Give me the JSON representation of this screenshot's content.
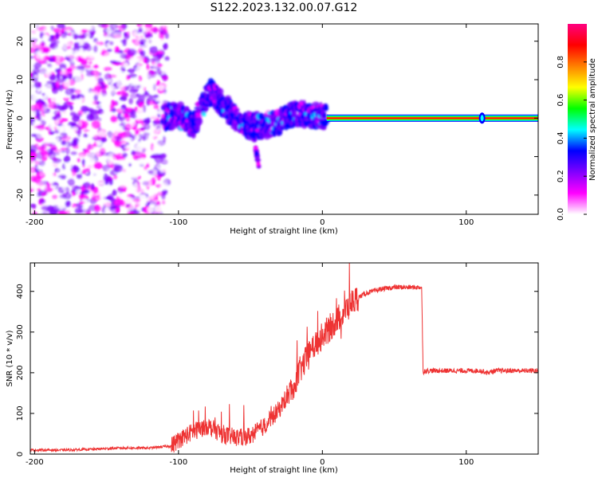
{
  "title": "S122.2023.132.00.07.G12",
  "chart_data": [
    {
      "type": "heatmap",
      "xlabel": "Height of straight line (km)",
      "ylabel": "Frequency (Hz)",
      "xlim": [
        -203,
        150
      ],
      "ylim": [
        -25,
        24.5
      ],
      "xticks": [
        -200,
        -100,
        0,
        100
      ],
      "yticks": [
        -20,
        -10,
        0,
        10,
        20
      ],
      "colorbar": {
        "label": "Normalized spectral amplitude",
        "range": [
          0,
          1
        ],
        "ticks": [
          0.0,
          0.2,
          0.4,
          0.6,
          0.8
        ],
        "colormap": [
          "#ffffff",
          "#ff00ff",
          "#8000ff",
          "#0000ff",
          "#00ffff",
          "#00ff00",
          "#ffff00",
          "#ff8000",
          "#ff0000",
          "#ff0080"
        ]
      },
      "ridge": [
        {
          "x": -110,
          "y": 0
        },
        {
          "x": -100,
          "y": 1
        },
        {
          "x": -90,
          "y": -2
        },
        {
          "x": -78,
          "y": 7
        },
        {
          "x": -70,
          "y": 4
        },
        {
          "x": -60,
          "y": 0
        },
        {
          "x": -50,
          "y": -2
        },
        {
          "x": -40,
          "y": -2
        },
        {
          "x": -30,
          "y": -1
        },
        {
          "x": -22,
          "y": 1
        },
        {
          "x": -12,
          "y": 1
        },
        {
          "x": 0,
          "y": 0.5
        },
        {
          "x": 5,
          "y": 0
        },
        {
          "x": 150,
          "y": 0
        }
      ],
      "tail": [
        {
          "x": -48,
          "y": -4
        },
        {
          "x": -44,
          "y": -13
        }
      ],
      "steady_line": {
        "x_start": 3,
        "x_end": 150,
        "y": 0
      },
      "marker": {
        "x": 111,
        "y": 0
      }
    },
    {
      "type": "line",
      "xlabel": "Height of straight line (km)",
      "ylabel": "SNR (10 * v/v)",
      "xlim": [
        -203,
        150
      ],
      "ylim": [
        0,
        470
      ],
      "xticks": [
        -200,
        -100,
        0,
        100
      ],
      "yticks": [
        0,
        100,
        200,
        300,
        400
      ],
      "color": "#ee3333",
      "x": [
        -203,
        -180,
        -160,
        -140,
        -120,
        -105,
        -100,
        -90,
        -80,
        -70,
        -60,
        -50,
        -40,
        -35,
        -30,
        -25,
        -20,
        -15,
        -10,
        -5,
        0,
        5,
        10,
        15,
        20,
        25,
        30,
        35,
        40,
        50,
        60,
        69,
        70,
        71,
        80,
        90,
        100,
        110,
        115,
        120,
        130,
        140,
        150
      ],
      "y": [
        10,
        10,
        12,
        15,
        15,
        20,
        35,
        55,
        70,
        50,
        40,
        45,
        70,
        90,
        110,
        140,
        170,
        210,
        240,
        270,
        290,
        310,
        330,
        350,
        370,
        385,
        395,
        400,
        405,
        410,
        410,
        410,
        200,
        205,
        205,
        205,
        205,
        205,
        200,
        205,
        205,
        205,
        205
      ]
    }
  ]
}
